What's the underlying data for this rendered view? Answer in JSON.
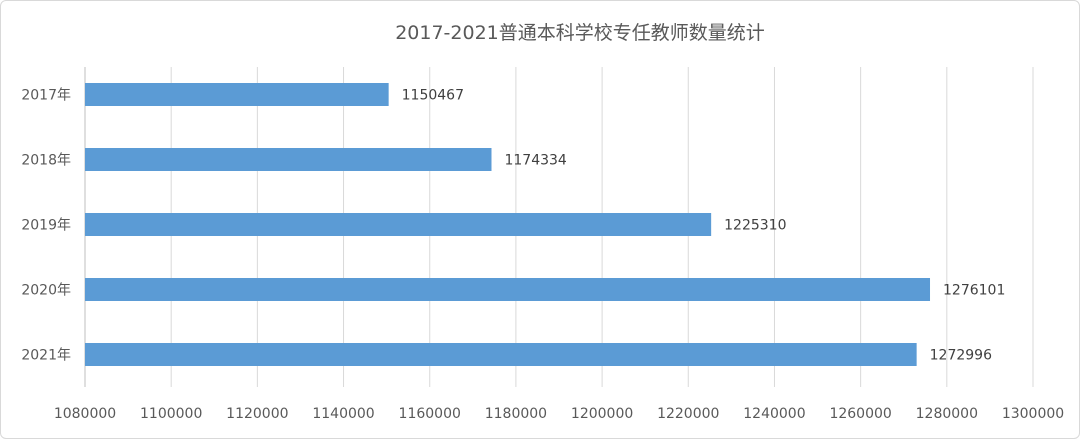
{
  "chart_data": {
    "type": "bar",
    "orientation": "horizontal",
    "title": "2017-2021普通本科学校专任教师数量统计",
    "categories": [
      "2017年",
      "2018年",
      "2019年",
      "2020年",
      "2021年"
    ],
    "values": [
      1150467,
      1174334,
      1225310,
      1276101,
      1272996
    ],
    "xlim": [
      1080000,
      1300000
    ],
    "x_ticks": [
      "1080000",
      "1100000",
      "1120000",
      "1140000",
      "1160000",
      "1180000",
      "1200000",
      "1220000",
      "1240000",
      "1260000",
      "1280000",
      "1300000"
    ],
    "grid": true,
    "bar_color": "#5B9BD5",
    "data_labels": [
      "1150467",
      "1174334",
      "1225310",
      "1276101",
      "1272996"
    ]
  }
}
